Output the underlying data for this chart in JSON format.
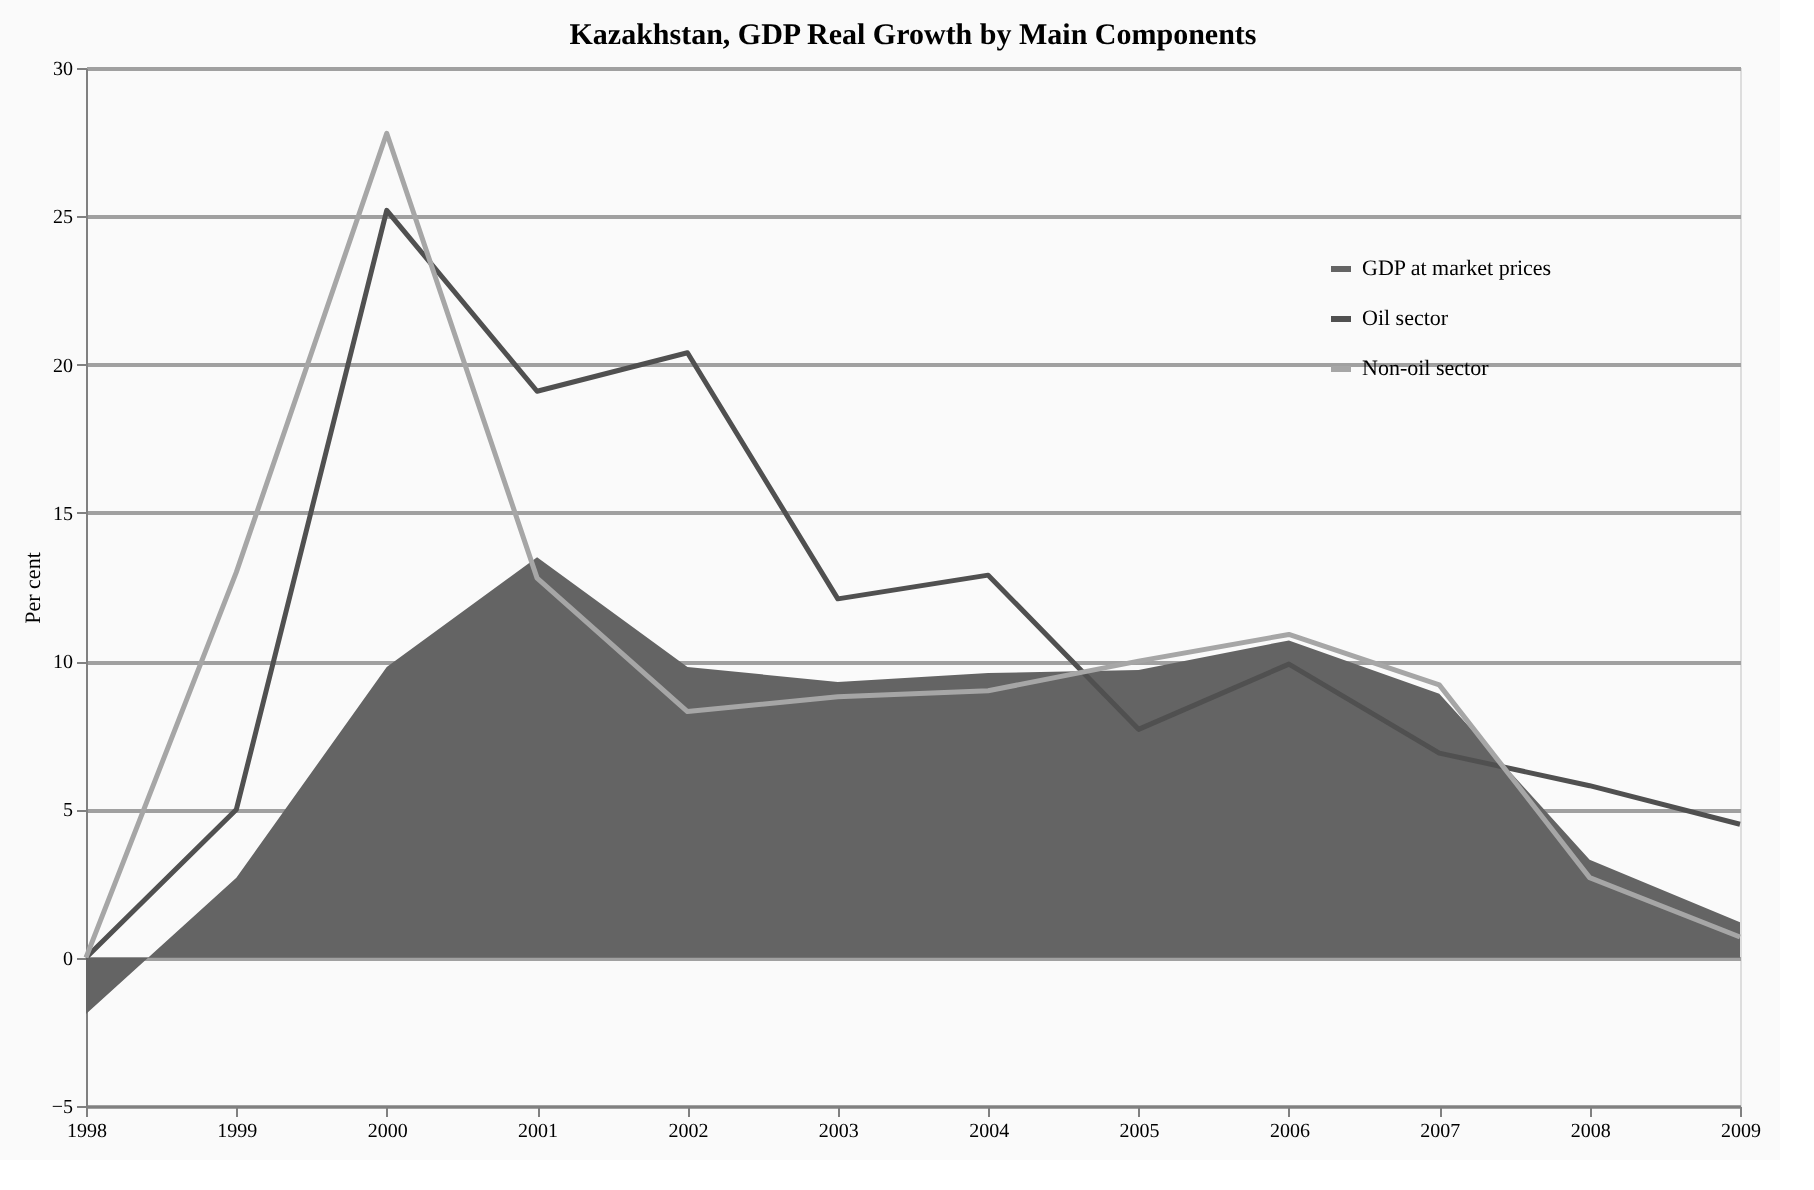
{
  "chart_data": {
    "type": "area",
    "title": "Kazakhstan, GDP Real Growth by Main Components",
    "ylabel": "Per cent",
    "categories": [
      "1998",
      "1999",
      "2000",
      "2001",
      "2002",
      "2003",
      "2004",
      "2005",
      "2006",
      "2007",
      "2008",
      "2009"
    ],
    "series": [
      {
        "name": "GDP at market prices",
        "color": "#646464",
        "values": [
          -1.9,
          2.7,
          9.8,
          13.5,
          9.8,
          9.3,
          9.6,
          9.7,
          10.7,
          8.9,
          3.3,
          1.2
        ]
      },
      {
        "name": "Oil sector",
        "type": "line",
        "color": "#505050",
        "values": [
          0,
          5.0,
          25.2,
          19.1,
          20.4,
          12.1,
          12.9,
          7.7,
          9.9,
          6.9,
          5.8,
          4.5
        ]
      },
      {
        "name": "Non-oil sector",
        "type": "line",
        "color": "#a6a6a6",
        "values": [
          0,
          13.0,
          27.8,
          12.8,
          8.3,
          8.8,
          9.0,
          10.0,
          10.9,
          9.2,
          2.7,
          0.7
        ]
      }
    ],
    "ylim": [
      -5,
      30
    ],
    "yticks": [
      -5,
      0,
      5,
      10,
      15,
      20,
      25,
      30
    ],
    "grid": "y",
    "legend": "top right"
  }
}
